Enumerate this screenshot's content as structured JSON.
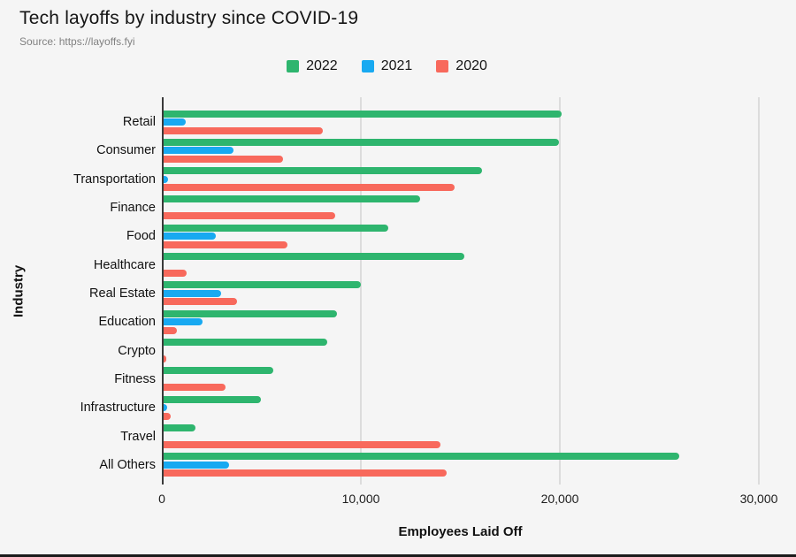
{
  "header": {
    "title": "Tech layoffs by industry since COVID-19",
    "source": "Source: https://layoffs.fyi"
  },
  "colors": {
    "green_2022": "#2eb56e",
    "blue_2021": "#18a9f1",
    "red_2020": "#f8695c",
    "gridline": "#dcdcdc",
    "axis_line": "#3a3a3a",
    "background": "#f5f5f5",
    "title_text": "#151515",
    "source_text": "#818181"
  },
  "chart_data": {
    "type": "bar",
    "orientation": "horizontal",
    "title": "Tech layoffs by industry since COVID-19",
    "source": "Source: https://layoffs.fyi",
    "xlabel": "Employees Laid Off",
    "ylabel": "Industry",
    "xlim": [
      0,
      30000
    ],
    "xticks": [
      0,
      10000,
      20000,
      30000
    ],
    "xtick_labels": [
      "0",
      "10,000",
      "20,000",
      "30,000"
    ],
    "grid": "vertical-only",
    "legend_position": "top-center",
    "categories": [
      "Retail",
      "Consumer",
      "Transportation",
      "Finance",
      "Food",
      "Healthcare",
      "Real Estate",
      "Education",
      "Crypto",
      "Fitness",
      "Infrastructure",
      "Travel",
      "All Others"
    ],
    "series": [
      {
        "name": "2022",
        "color": "#2eb56e",
        "values": [
          20000,
          19850,
          16000,
          12900,
          11300,
          15100,
          9900,
          8700,
          8200,
          5500,
          4900,
          1600,
          25900
        ]
      },
      {
        "name": "2021",
        "color": "#18a9f1",
        "values": [
          1100,
          3500,
          200,
          0,
          2600,
          0,
          2900,
          1950,
          0,
          0,
          180,
          0,
          3300
        ]
      },
      {
        "name": "2020",
        "color": "#f8695c",
        "values": [
          8000,
          6000,
          14600,
          8600,
          6200,
          1150,
          3700,
          650,
          130,
          3100,
          350,
          13900,
          14200
        ]
      }
    ]
  }
}
